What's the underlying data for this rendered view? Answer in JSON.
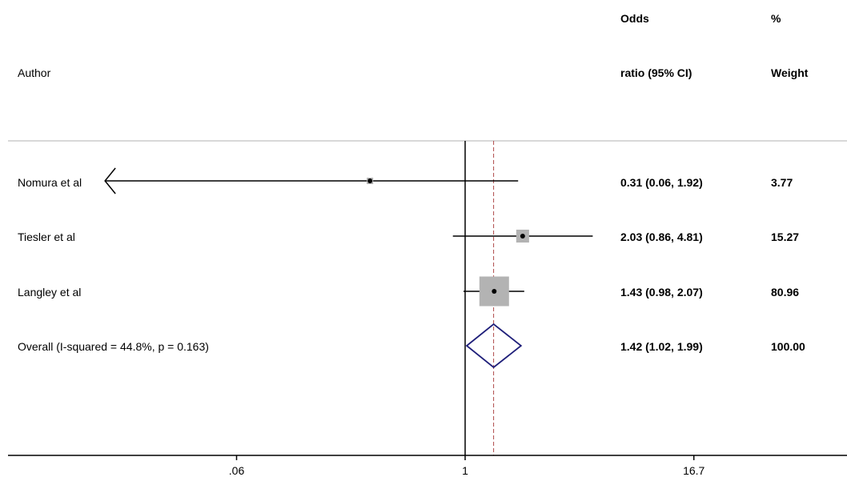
{
  "chart_data": {
    "type": "forest",
    "headers": {
      "author": "Author",
      "or_line1": "Odds",
      "or_line2": "ratio (95% CI)",
      "wt_line1": "%",
      "wt_line2": "Weight"
    },
    "x_scale": "log",
    "xlim": [
      0.0036,
      110
    ],
    "x_ticks": [
      {
        "value": 0.06,
        "label": ".06"
      },
      {
        "value": 1,
        "label": "1"
      },
      {
        "value": 16.7,
        "label": "16.7"
      }
    ],
    "null_line": 1,
    "overall_line": 1.42,
    "studies": [
      {
        "author": "Nomura et al",
        "or": 0.31,
        "lo": 0.06,
        "hi": 1.92,
        "ci_text": "0.31 (0.06, 1.92)",
        "weight": 3.77,
        "weight_text": "3.77",
        "truncated_left": true
      },
      {
        "author": "Tiesler et al",
        "or": 2.03,
        "lo": 0.86,
        "hi": 4.81,
        "ci_text": "2.03 (0.86, 4.81)",
        "weight": 15.27,
        "weight_text": "15.27",
        "truncated_left": false
      },
      {
        "author": "Langley et al",
        "or": 1.43,
        "lo": 0.98,
        "hi": 2.07,
        "ci_text": "1.43 (0.98, 2.07)",
        "weight": 80.96,
        "weight_text": "80.96",
        "truncated_left": false
      }
    ],
    "overall": {
      "label": "Overall  (I-squared = 44.8%, p = 0.163)",
      "or": 1.42,
      "lo": 1.02,
      "hi": 1.99,
      "ci_text": "1.42 (1.02, 1.99)",
      "weight_text": "100.00"
    },
    "colors": {
      "marker_box": "#b3b3b3",
      "diamond": "#1f1f7a",
      "overall_line": "#b04a4a",
      "axis": "#000000",
      "separator": "#cccccc"
    }
  }
}
